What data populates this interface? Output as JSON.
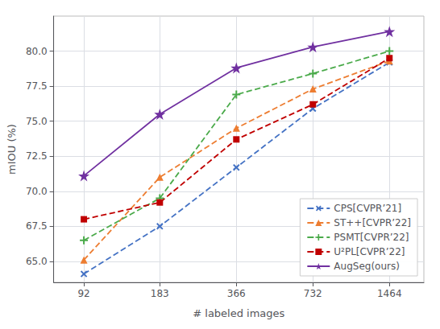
{
  "chart_data": {
    "type": "line",
    "xlabel": "# labeled images",
    "ylabel": "mIOU (%)",
    "x": [
      92,
      183,
      366,
      732,
      1464
    ],
    "xlim": [
      70,
      2000
    ],
    "xticks": [
      92,
      183,
      366,
      732,
      1464
    ],
    "ylim": [
      63.5,
      82.5
    ],
    "yticks": [
      {
        "value": 65.0,
        "label": "65.0"
      },
      67.5,
      {
        "value": 70.0,
        "label": "70.0"
      },
      72.5,
      {
        "value": 75.0,
        "label": "75.0"
      },
      77.5,
      {
        "value": 80.0,
        "label": "80.0"
      }
    ],
    "log": "x",
    "grid": true,
    "legend": "lower right",
    "series": [
      {
        "name": "CPS[CVPR’21]",
        "color": "#4472c4",
        "values": [
          64.1,
          67.5,
          71.7,
          75.9,
          79.2
        ],
        "marker": "x",
        "line_style": "dashed"
      },
      {
        "name": "ST++[CVPR’22]",
        "color": "#ed7d31",
        "values": [
          65.1,
          71.0,
          74.5,
          77.3,
          79.3
        ],
        "marker": "triangle",
        "line_style": "dashed"
      },
      {
        "name": "PSMT[CVPR’22]",
        "color": "#4aaa4a",
        "values": [
          66.5,
          69.5,
          76.9,
          78.4,
          80.0
        ],
        "marker": "plus",
        "line_style": "dashed"
      },
      {
        "name": "U²PL[CVPR’22]",
        "color": "#c00000",
        "values": [
          68.0,
          69.2,
          73.7,
          76.2,
          79.5
        ],
        "marker": "square",
        "line_style": "dashed"
      },
      {
        "name": "AugSeg(ours)",
        "color": "#7030a0",
        "values": [
          71.1,
          75.5,
          78.8,
          80.3,
          81.4
        ],
        "marker": "star",
        "line_style": "solid"
      }
    ]
  }
}
